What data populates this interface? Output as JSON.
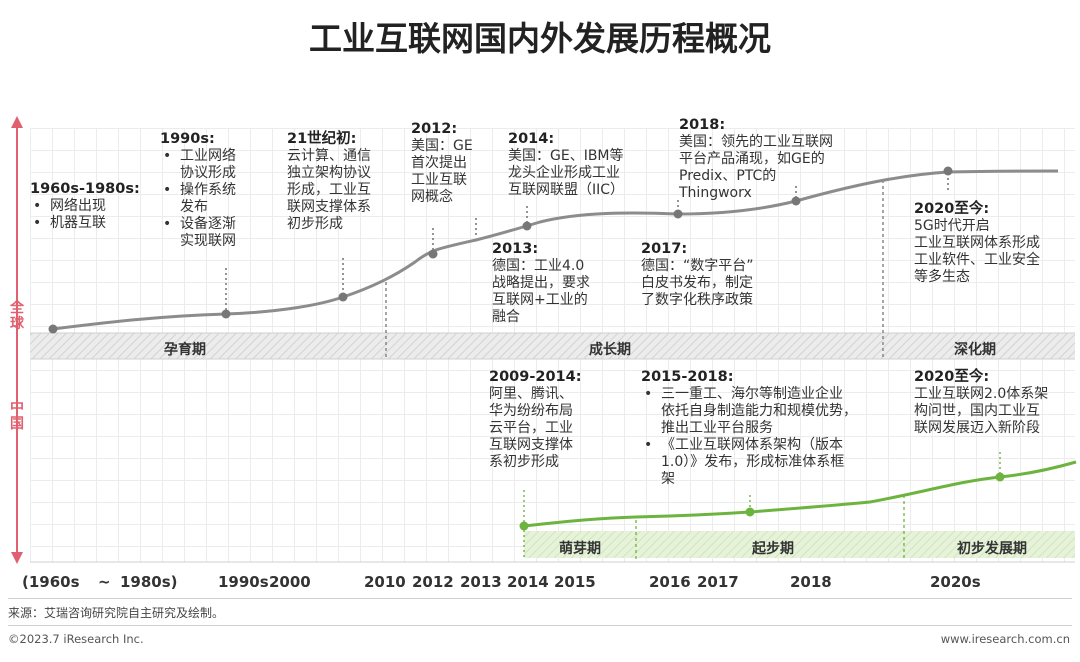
{
  "title": "工业互联网国内外发展历程概况",
  "side_labels": {
    "global": "全球",
    "china": "中国"
  },
  "global_bands": [
    "孕育期",
    "成长期",
    "深化期"
  ],
  "china_bands": [
    "萌芽期",
    "起步期",
    "初步发展期"
  ],
  "global_annotations": [
    {
      "head": "1960s-1980s:",
      "items": [
        "网络出现",
        "机器互联"
      ],
      "lines": []
    },
    {
      "head": "1990s:",
      "items": [
        "工业网络",
        "协议形成",
        "操作系统",
        "发布",
        "设备逐渐",
        "实现联网"
      ],
      "lines": []
    },
    {
      "head": "21世纪初:",
      "items": [],
      "lines": [
        "云计算、通信",
        "独立架构协议",
        "形成，工业互",
        "联网支撑体系",
        "初步形成"
      ]
    },
    {
      "head": "2012:",
      "items": [],
      "lines": [
        "美国：GE",
        "首次提出",
        "工业互联",
        "网概念"
      ]
    },
    {
      "head": "2013:",
      "items": [],
      "lines": [
        "德国：工业4.0",
        "战略提出，要求",
        "互联网+工业的",
        "融合"
      ]
    },
    {
      "head": "2014:",
      "items": [],
      "lines": [
        "美国：GE、IBM等",
        "龙头企业形成工业",
        "互联网联盟（IIC）"
      ]
    },
    {
      "head": "2017:",
      "items": [],
      "lines": [
        "德国：“数字平台”",
        "白皮书发布，制定",
        "了数字化秩序政策"
      ]
    },
    {
      "head": "2018:",
      "items": [],
      "lines": [
        "美国：领先的工业互联网",
        "平台产品涌现，如GE的",
        "Predix、PTC的",
        "Thingworx"
      ]
    },
    {
      "head": "2020至今:",
      "items": [],
      "lines": [
        "5G时代开启",
        "工业互联网体系形成",
        "工业软件、工业安全",
        "等多生态"
      ]
    }
  ],
  "china_annotations": [
    {
      "head": "2009-2014:",
      "items": [],
      "lines": [
        "阿里、腾讯、",
        "华为纷纷布局",
        "云平台，工业",
        "互联网支撑体",
        "系初步形成"
      ]
    },
    {
      "head": "2015-2018:",
      "items": [
        "三一重工、海尔等制造业企业",
        "依托自身制造能力和规模优势，",
        "推出工业平台服务",
        "《工业互联网体系架构（版本",
        "1.0）》发布，形成标准体系框",
        "架"
      ],
      "lines": []
    },
    {
      "head": "2020至今:",
      "items": [],
      "lines": [
        "工业互联网2.0体系架",
        "构问世，国内工业互",
        "联网发展迈入新阶段"
      ]
    }
  ],
  "x_axis_labels": [
    "(1960s",
    "~",
    "1980s)",
    "1990s",
    "2000",
    "2010",
    "2012",
    "2013",
    "2014",
    "2015",
    "2016",
    "2017",
    "2018",
    "2020s"
  ],
  "source": "来源：艾瑞咨询研究院自主研究及绘制。",
  "copyright": "©2023.7 iResearch Inc.",
  "website": "www.iresearch.com.cn",
  "colors": {
    "global_line": "#8c8c8c",
    "china_line": "#6db33f",
    "accent": "#e0606f",
    "band_gray": "#e4e4e4",
    "band_green": "#e3f1d6"
  }
}
